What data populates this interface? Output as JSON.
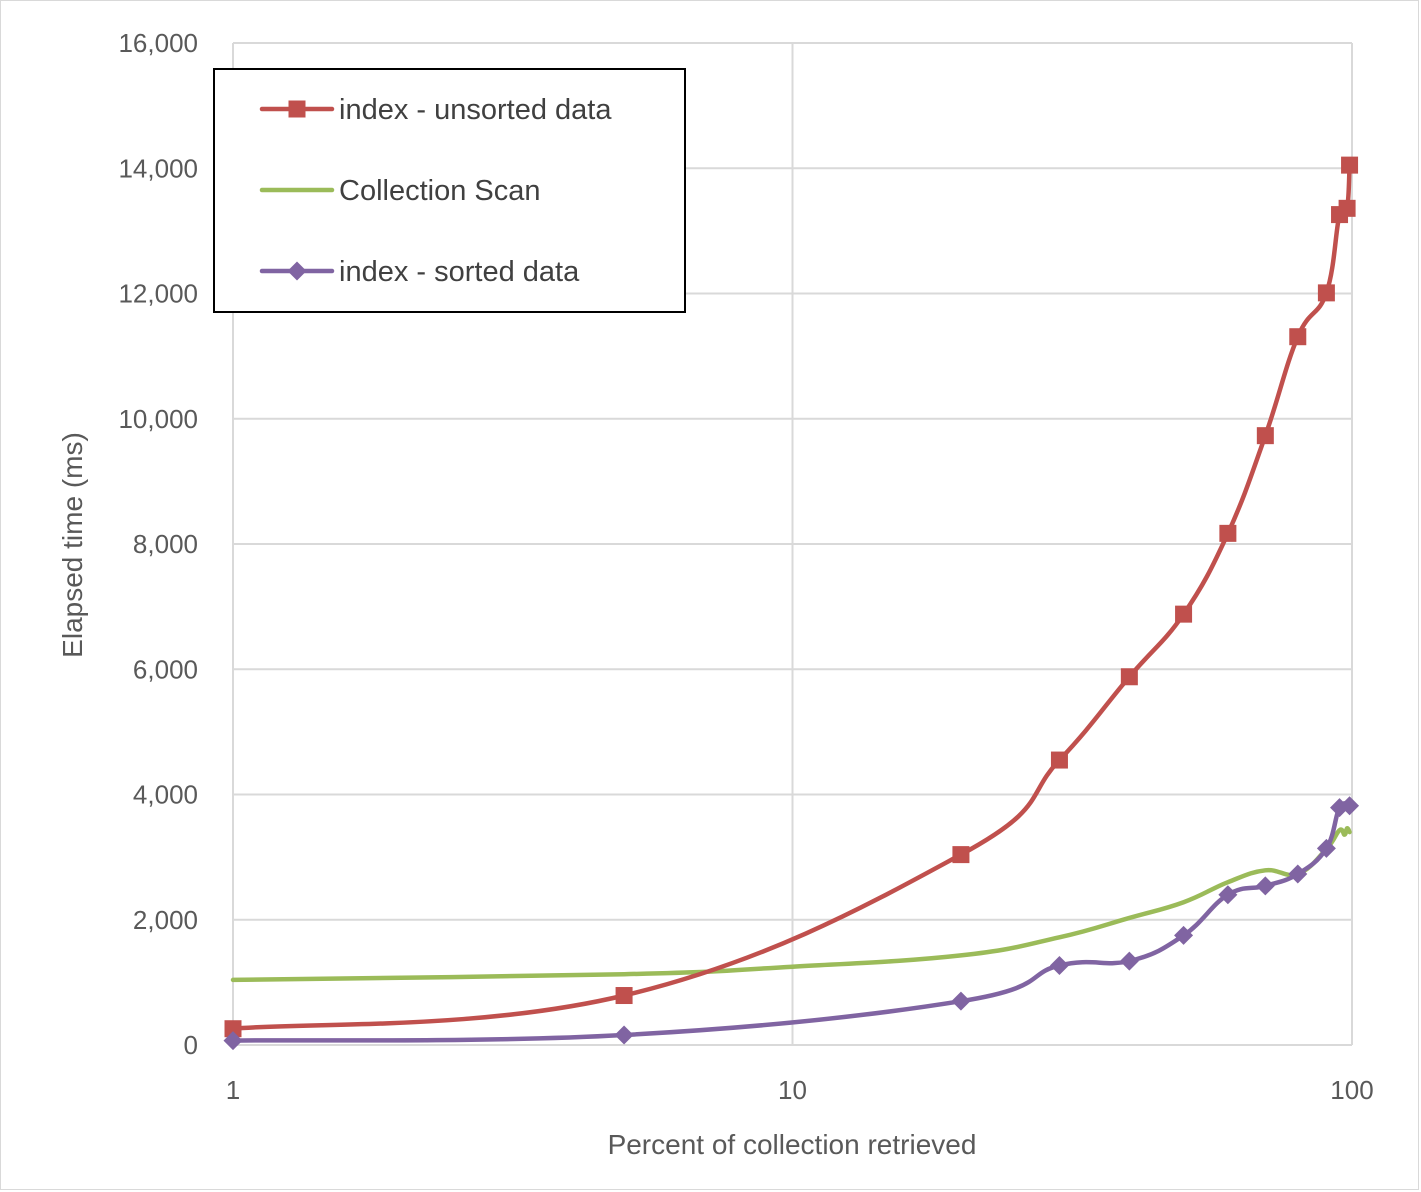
{
  "chart_data": {
    "type": "line",
    "xscale": "log",
    "xlim": [
      1,
      100
    ],
    "ylim": [
      0,
      16000
    ],
    "xlabel": "Percent of  collection retrieved",
    "ylabel": "Elapsed time (ms)",
    "x_ticks": [
      {
        "value": 1,
        "label": "1"
      },
      {
        "value": 10,
        "label": "10"
      },
      {
        "value": 100,
        "label": "100"
      }
    ],
    "y_ticks": [
      {
        "value": 0,
        "label": "0"
      },
      {
        "value": 2000,
        "label": "2,000"
      },
      {
        "value": 4000,
        "label": "4,000"
      },
      {
        "value": 6000,
        "label": "6,000"
      },
      {
        "value": 8000,
        "label": "8,000"
      },
      {
        "value": 10000,
        "label": "10,000"
      },
      {
        "value": 12000,
        "label": "12,000"
      },
      {
        "value": 14000,
        "label": "14,000"
      },
      {
        "value": 16000,
        "label": "16,000"
      }
    ],
    "grid": true,
    "legend_position": "top-left",
    "series": [
      {
        "name": "index - unsorted data",
        "color": "#c0504d",
        "marker": "square",
        "x": [
          1,
          5,
          20,
          30,
          40,
          50,
          60,
          70,
          80,
          90,
          95,
          98,
          99
        ],
        "y": [
          260,
          790,
          3040,
          4550,
          5880,
          6880,
          8170,
          9730,
          11310,
          12010,
          13260,
          13360,
          14050
        ]
      },
      {
        "name": "Collection Scan",
        "color": "#9bbb59",
        "marker": "none",
        "x": [
          1,
          5,
          10,
          20,
          30,
          40,
          50,
          60,
          70,
          80,
          90,
          95,
          97,
          98,
          99
        ],
        "y": [
          1040,
          1130,
          1250,
          1430,
          1720,
          2030,
          2280,
          2600,
          2790,
          2730,
          3130,
          3430,
          3360,
          3460,
          3400
        ]
      },
      {
        "name": "index - sorted data",
        "color": "#8064a2",
        "marker": "diamond",
        "x": [
          1,
          5,
          20,
          30,
          40,
          50,
          60,
          70,
          80,
          90,
          95,
          99
        ],
        "y": [
          70,
          160,
          700,
          1270,
          1340,
          1750,
          2400,
          2540,
          2730,
          3140,
          3790,
          3820
        ]
      }
    ]
  }
}
